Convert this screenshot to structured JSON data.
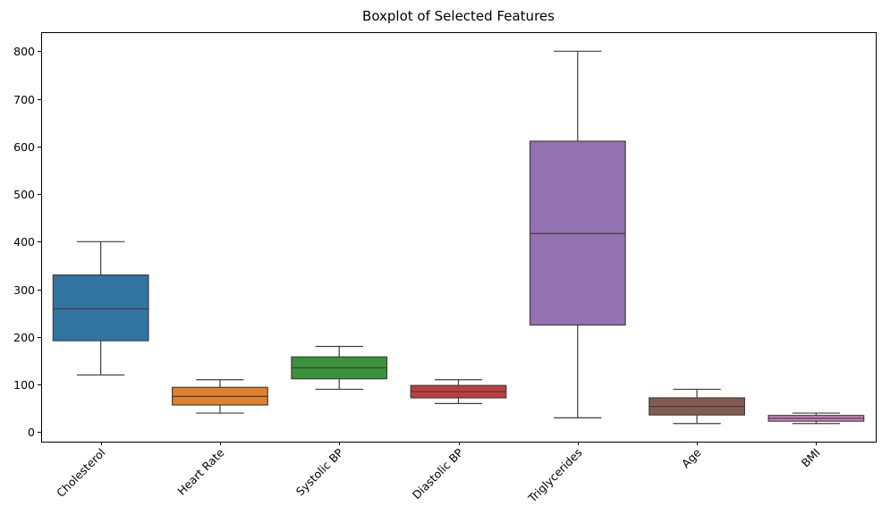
{
  "chart_data": {
    "type": "box",
    "title": "Boxplot of Selected Features",
    "xlabel": "",
    "ylabel": "",
    "ylim": [
      -20,
      840
    ],
    "yticks": [
      0,
      100,
      200,
      300,
      400,
      500,
      600,
      700,
      800
    ],
    "grid": false,
    "legend": "none",
    "x_tick_rotation": 45,
    "categories": [
      "Cholesterol",
      "Heart Rate",
      "Systolic BP",
      "Diastolic BP",
      "Triglycerides",
      "Age",
      "BMI"
    ],
    "boxes": [
      {
        "name": "Cholesterol",
        "whisker_low": 120,
        "q1": 192,
        "median": 259,
        "q3": 330,
        "whisker_high": 400,
        "color": "#3274a1"
      },
      {
        "name": "Heart Rate",
        "whisker_low": 40,
        "q1": 57,
        "median": 75,
        "q3": 94,
        "whisker_high": 110,
        "color": "#e1812c"
      },
      {
        "name": "Systolic BP",
        "whisker_low": 90,
        "q1": 112,
        "median": 135,
        "q3": 158,
        "whisker_high": 180,
        "color": "#3a923a"
      },
      {
        "name": "Diastolic BP",
        "whisker_low": 60,
        "q1": 72,
        "median": 85,
        "q3": 98,
        "whisker_high": 110,
        "color": "#c03d3e"
      },
      {
        "name": "Triglycerides",
        "whisker_low": 30,
        "q1": 225,
        "median": 417,
        "q3": 611,
        "whisker_high": 800,
        "color": "#9372b2"
      },
      {
        "name": "Age",
        "whisker_low": 18,
        "q1": 36,
        "median": 54,
        "q3": 72,
        "whisker_high": 90,
        "color": "#845b53"
      },
      {
        "name": "BMI",
        "whisker_low": 18,
        "q1": 23,
        "median": 29,
        "q3": 35,
        "whisker_high": 40,
        "color": "#d684bd"
      }
    ]
  }
}
